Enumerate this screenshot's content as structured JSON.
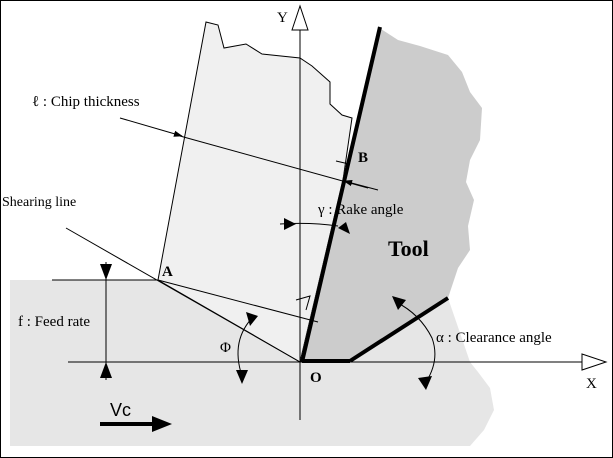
{
  "diagram": {
    "axes": {
      "y_label": "Y",
      "x_label": "X"
    },
    "points": {
      "A": "A",
      "B": "B",
      "O": "O"
    },
    "labels": {
      "chip_thickness": "ℓ : Chip thickness",
      "shearing_line": "Shearing line",
      "rake_angle": "γ :  Rake angle",
      "tool": "Tool",
      "feed_rate": "f : Feed rate",
      "phi": "Φ",
      "clearance_angle": "α : Clearance angle",
      "cutting_speed": "Vc"
    },
    "colors": {
      "workpiece": "#e6e6e6",
      "chip": "#f0f0f0",
      "tool": "#cccccc",
      "line": "#000000",
      "background": "#ffffff"
    }
  }
}
